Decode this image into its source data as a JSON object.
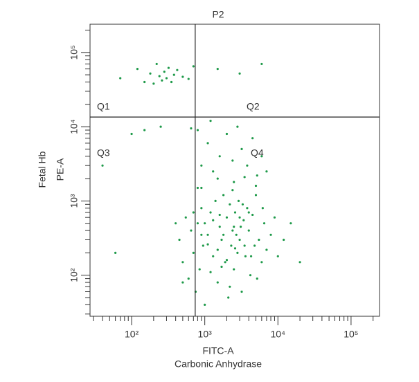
{
  "chart_data": {
    "type": "scatter",
    "title": "P2",
    "x_label": "FITC-A",
    "x_sublabel": "Carbonic Anhydrase",
    "y_label": "PE-A",
    "y_sublabel": "Fetal Hb",
    "log_x": true,
    "log_y": true,
    "minor_ticks": true,
    "color": "#1f9a4a",
    "xlim": [
      27,
      245000
    ],
    "ylim": [
      28,
      240000
    ],
    "xticks": [
      {
        "value": 100,
        "label": "10²"
      },
      {
        "value": 1000,
        "label": "10³"
      },
      {
        "value": 10000,
        "label": "10⁴"
      },
      {
        "value": 100000,
        "label": "10⁵"
      }
    ],
    "yticks": [
      {
        "value": 100,
        "label": "10²"
      },
      {
        "value": 1000,
        "label": "10³"
      },
      {
        "value": 10000,
        "label": "10⁴"
      },
      {
        "value": 100000,
        "label": "10⁵"
      }
    ],
    "gate_x": 740,
    "gate_y": 13500,
    "quadrants": [
      "Q1",
      "Q2",
      "Q3",
      "Q4"
    ],
    "x": [
      70,
      120,
      150,
      180,
      200,
      220,
      240,
      260,
      280,
      300,
      320,
      350,
      380,
      420,
      500,
      600,
      700,
      1500,
      3000,
      6000,
      40,
      60,
      100,
      150,
      250,
      400,
      500,
      650,
      800,
      900,
      1100,
      1300,
      1600,
      2000,
      2400,
      2800,
      3200,
      3800,
      4500,
      5200,
      6000,
      7000,
      900,
      1500,
      2500,
      3500,
      1200,
      5000,
      450,
      500,
      550,
      600,
      650,
      700,
      750,
      800,
      850,
      900,
      950,
      1000,
      1100,
      1200,
      1300,
      1400,
      1500,
      1600,
      1700,
      1800,
      1900,
      2000,
      2100,
      2200,
      2300,
      2400,
      2500,
      2600,
      2700,
      2800,
      2900,
      3000,
      3200,
      3400,
      3600,
      3800,
      4000,
      4200,
      4500,
      4800,
      5000,
      5500,
      6000,
      6500,
      7000,
      8000,
      9000,
      10000,
      12000,
      15000,
      20000,
      1000,
      1500,
      2000,
      2500,
      3000,
      3500,
      4000,
      1200,
      1800,
      2200,
      2600,
      3300,
      4300,
      700,
      900,
      1300,
      1700,
      2400,
      3100,
      5200,
      6200,
      800,
      1100,
      1600
    ],
    "y": [
      45000,
      60000,
      40000,
      52000,
      38000,
      70000,
      48000,
      42000,
      55000,
      45000,
      62000,
      40000,
      50000,
      58000,
      47000,
      44000,
      65000,
      60000,
      52000,
      70000,
      3000,
      200,
      8000,
      9000,
      10000,
      500,
      80,
      9500,
      9000,
      3000,
      6000,
      2500,
      4000,
      8000,
      3500,
      10000,
      5000,
      3000,
      7000,
      2200,
      4000,
      2500,
      1500,
      2000,
      1800,
      2100,
      12000,
      1600,
      300,
      150,
      600,
      90,
      400,
      200,
      60,
      500,
      120,
      800,
      250,
      40,
      350,
      700,
      180,
      1000,
      80,
      450,
      300,
      1200,
      150,
      600,
      50,
      900,
      250,
      400,
      120,
      700,
      350,
      200,
      1000,
      300,
      60,
      550,
      180,
      800,
      400,
      100,
      650,
      250,
      1200,
      300,
      150,
      500,
      220,
      350,
      600,
      180,
      300,
      500,
      150,
      500,
      220,
      160,
      450,
      600,
      250,
      700,
      110,
      350,
      70,
      230,
      900,
      180,
      700,
      350,
      550,
      130,
      1400,
      450,
      90,
      800,
      1500,
      260,
      650
    ]
  }
}
